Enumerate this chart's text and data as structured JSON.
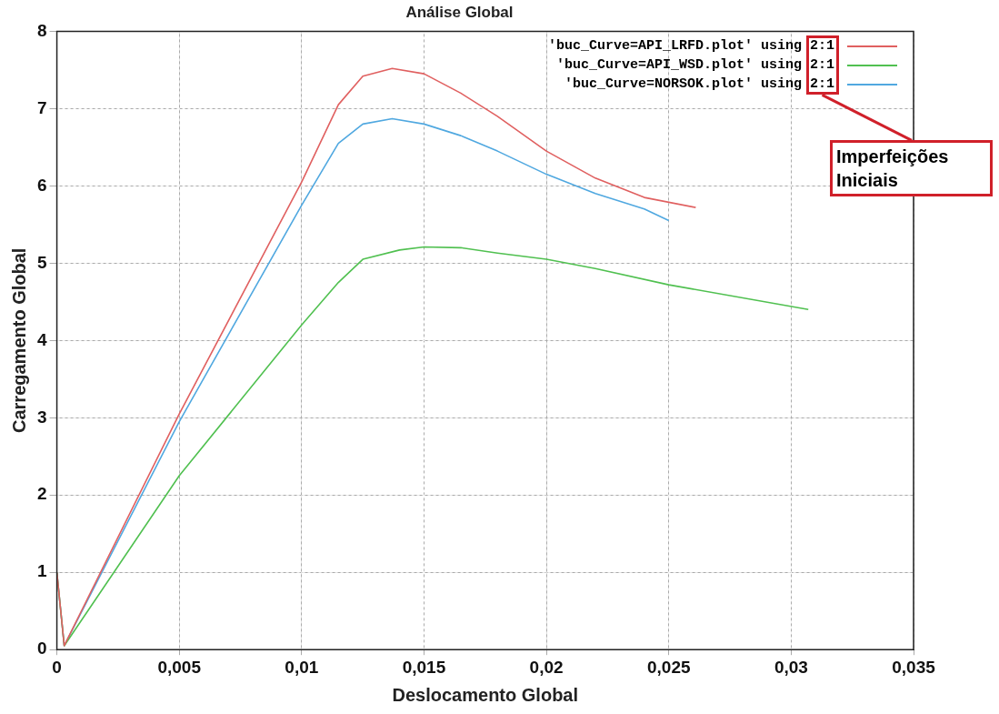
{
  "chart_data": {
    "type": "line",
    "title": "Análise Global",
    "xlabel": "Deslocamento Global",
    "ylabel": "Carregamento Global",
    "xlim": [
      0,
      0.035
    ],
    "xticks": [
      0,
      {
        "value": 0.005,
        "label": "0,005"
      },
      {
        "value": 0.01,
        "label": "0,01"
      },
      {
        "value": 0.015,
        "label": "0,015"
      },
      {
        "value": 0.02,
        "label": "0,02"
      },
      {
        "value": 0.025,
        "label": "0,025"
      },
      {
        "value": 0.03,
        "label": "0,03"
      },
      {
        "value": 0.035,
        "label": "0,035"
      }
    ],
    "ylim": [
      0,
      8
    ],
    "yticks": [
      0,
      1,
      2,
      3,
      4,
      5,
      6,
      7,
      8
    ],
    "grid": true,
    "legend": "top right",
    "marker": "none",
    "line_style": "solid",
    "annotations": [
      "Imperfeições Iniciais"
    ],
    "series": [
      {
        "name": "'buc_Curve=API_LRFD.plot' using 2:1",
        "color": "#e06060",
        "x": [
          0,
          0.0003,
          0.005,
          0.01,
          0.0115,
          0.0125,
          0.0137,
          0.015,
          0.0165,
          0.018,
          0.02,
          0.022,
          0.024,
          0.0261
        ],
        "values": [
          1,
          0.05,
          3.05,
          6.05,
          7.05,
          7.42,
          7.52,
          7.45,
          7.2,
          6.9,
          6.45,
          6.1,
          5.85,
          5.72
        ]
      },
      {
        "name": "'buc_Curve=API_WSD.plot' using 2:1",
        "color": "#50c050",
        "x": [
          0,
          0.0003,
          0.005,
          0.01,
          0.0115,
          0.0125,
          0.014,
          0.015,
          0.0165,
          0.018,
          0.02,
          0.022,
          0.025,
          0.0307
        ],
        "values": [
          1,
          0.05,
          2.25,
          4.2,
          4.75,
          5.05,
          5.17,
          5.21,
          5.2,
          5.13,
          5.05,
          4.93,
          4.72,
          4.4
        ]
      },
      {
        "name": "'buc_Curve=NORSOK.plot' using 2:1",
        "color": "#50a8e0",
        "x": [
          0,
          0.0003,
          0.005,
          0.01,
          0.0115,
          0.0125,
          0.0137,
          0.015,
          0.0165,
          0.018,
          0.02,
          0.022,
          0.024,
          0.025
        ],
        "values": [
          1,
          0.05,
          2.95,
          5.75,
          6.55,
          6.8,
          6.87,
          6.8,
          6.65,
          6.45,
          6.15,
          5.9,
          5.7,
          5.55
        ]
      }
    ]
  }
}
